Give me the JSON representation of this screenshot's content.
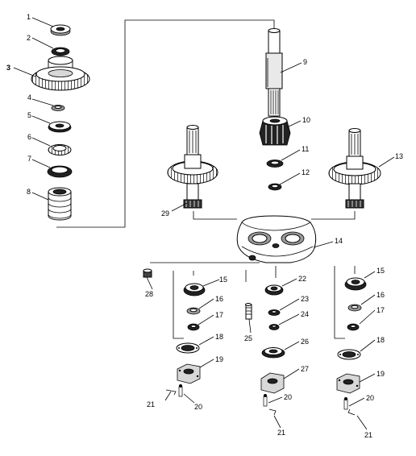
{
  "diagram": {
    "callouts": [
      "1",
      "2",
      "3",
      "4",
      "5",
      "6",
      "7",
      "8",
      "9",
      "10",
      "11",
      "12",
      "13",
      "14",
      "15",
      "15",
      "16",
      "16",
      "17",
      "17",
      "18",
      "18",
      "19",
      "19",
      "20",
      "20",
      "20",
      "21",
      "21",
      "21",
      "22",
      "23",
      "24",
      "25",
      "26",
      "27",
      "28",
      "29"
    ]
  }
}
